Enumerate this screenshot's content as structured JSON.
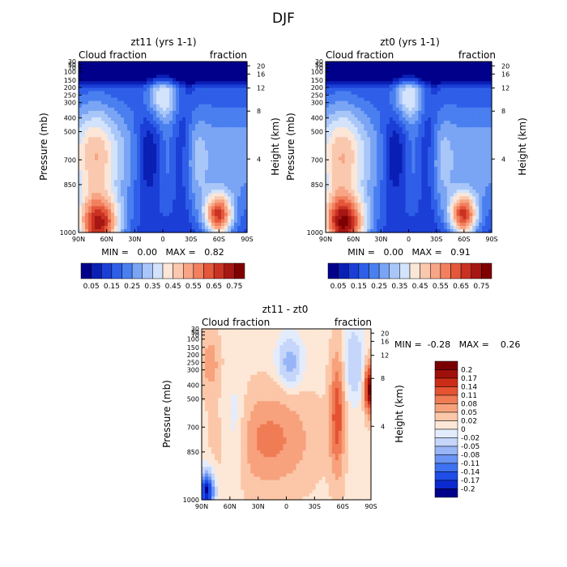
{
  "figure_title": "DJF",
  "colors": {
    "top_scale": [
      "#00008b",
      "#0a1fb4",
      "#1b3fd6",
      "#2f5fe8",
      "#4a7ff0",
      "#7aa4f4",
      "#a9c6f8",
      "#d2e3fb",
      "#fbe6d8",
      "#fac8ae",
      "#f7a585",
      "#f2805e",
      "#e4573b",
      "#c93222",
      "#a61612",
      "#7f0000"
    ],
    "diff_scale": [
      "#00008b",
      "#0a2ad0",
      "#1f4de8",
      "#3e72f0",
      "#6994f4",
      "#97b5f7",
      "#c5d6fa",
      "#e3ecfd",
      "#fde7d6",
      "#fbc7a8",
      "#f7a27d",
      "#f07c55",
      "#e45332",
      "#cc2d17",
      "#a0100a",
      "#7a0000"
    ]
  },
  "chart_data": [
    {
      "type": "heatmap",
      "title": "zt11 (yrs 1-1)",
      "left_label": "Cloud fraction",
      "right_label": "fraction",
      "ylabel": "Pressure (mb)",
      "y2label": "Height (km)",
      "x_ticks": [
        "90N",
        "60N",
        "30N",
        "0",
        "30S",
        "60S",
        "90S"
      ],
      "y_ticks": [
        "30",
        "50",
        "70",
        "100",
        "150",
        "200",
        "250",
        "300",
        "400",
        "500",
        "700",
        "850",
        "1000"
      ],
      "y2_ticks": [
        "20",
        "16",
        "12",
        "8",
        "4"
      ],
      "stats": "MIN =   0.00   MAX =   0.82",
      "min": 0.0,
      "max": 0.82
    },
    {
      "type": "heatmap",
      "title": "zt0 (yrs 1-1)",
      "left_label": "Cloud fraction",
      "right_label": "fraction",
      "ylabel": "Pressure (mb)",
      "y2label": "Height (km)",
      "x_ticks": [
        "90N",
        "60N",
        "30N",
        "0",
        "30S",
        "60S",
        "90S"
      ],
      "y_ticks": [
        "30",
        "50",
        "70",
        "100",
        "150",
        "200",
        "250",
        "300",
        "400",
        "500",
        "700",
        "850",
        "1000"
      ],
      "y2_ticks": [
        "20",
        "16",
        "12",
        "8",
        "4"
      ],
      "stats": "MIN =   0.00   MAX =   0.91",
      "min": 0.0,
      "max": 0.91
    },
    {
      "type": "heatmap",
      "title": "zt11 - zt0",
      "left_label": "Cloud fraction",
      "right_label": "fraction",
      "ylabel": "Pressure (mb)",
      "y2label": "Height (km)",
      "x_ticks": [
        "90N",
        "60N",
        "30N",
        "0",
        "30S",
        "60S",
        "90S"
      ],
      "y_ticks": [
        "30",
        "50",
        "70",
        "100",
        "150",
        "200",
        "250",
        "300",
        "400",
        "500",
        "700",
        "850",
        "1000"
      ],
      "y2_ticks": [
        "20",
        "16",
        "12",
        "8",
        "4"
      ],
      "stats": "MIN =  -0.28   MAX =    0.26",
      "min": -0.28,
      "max": 0.26
    }
  ],
  "shared_colorbar": {
    "labels": [
      "0.05",
      "0.15",
      "0.25",
      "0.35",
      "0.45",
      "0.55",
      "0.65",
      "0.75"
    ]
  },
  "diff_colorbar": {
    "labels": [
      "0.2",
      "0.17",
      "0.14",
      "0.11",
      "0.08",
      "0.05",
      "0.02",
      "0",
      "-0.02",
      "-0.05",
      "-0.08",
      "-0.11",
      "-0.14",
      "-0.17",
      "-0.2"
    ]
  }
}
